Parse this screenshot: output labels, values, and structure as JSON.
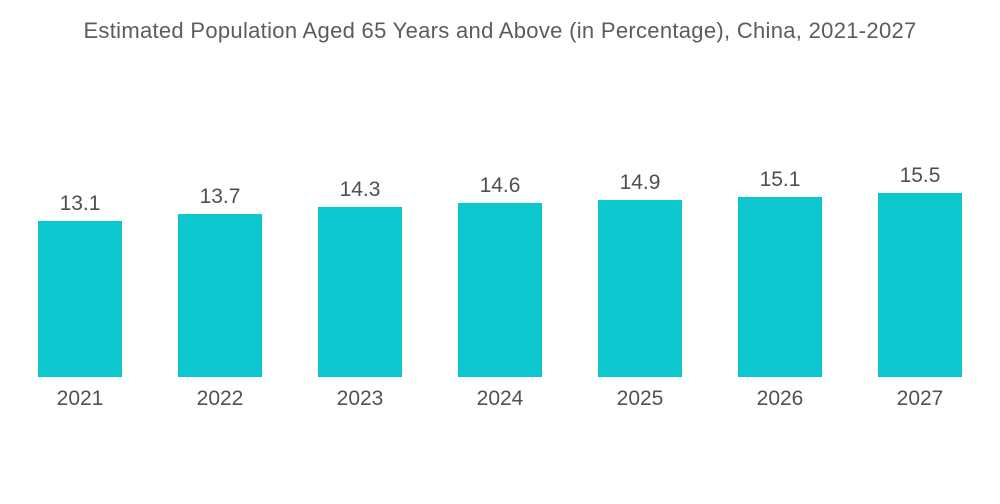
{
  "title": "Estimated Population Aged 65 Years and Above (in Percentage), China, 2021-2027",
  "chart_data": {
    "type": "bar",
    "title": "Estimated Population Aged 65 Years and Above (in Percentage), China, 2021-2027",
    "categories": [
      "2021",
      "2022",
      "2023",
      "2024",
      "2025",
      "2026",
      "2027"
    ],
    "values": [
      13.1,
      13.7,
      14.3,
      14.6,
      14.9,
      15.1,
      15.5
    ],
    "value_labels": [
      "13.1",
      "13.7",
      "14.3",
      "14.6",
      "14.9",
      "15.1",
      "15.5"
    ],
    "xlabel": "",
    "ylabel": "",
    "ylim": [
      0,
      18.2
    ],
    "grid": false,
    "legend": false,
    "axes_visible": false,
    "bar_color": "#0cc8ce",
    "value_label_color": "#4e4f51",
    "year_label_color": "#515254",
    "title_color": "#5b5c5e",
    "background_color": "#ffffff"
  }
}
